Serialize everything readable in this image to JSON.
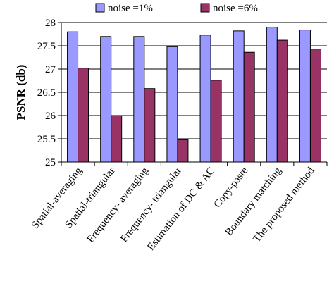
{
  "chart_data": {
    "type": "bar",
    "title": "",
    "xlabel": "",
    "ylabel": "PSNR (db)",
    "ylim": [
      25,
      28
    ],
    "yticks": [
      "25",
      "25.5",
      "26",
      "26.5",
      "27",
      "27.5",
      "28"
    ],
    "grid": "horizontal",
    "legend_position": "top",
    "categories": [
      "Spatial-averaging",
      "Spatial-triangular",
      "Frequency- averaging",
      "Frequency- triangular",
      "Estimation of DC & AC",
      "Copy-paste",
      "Boundary matching",
      "The proposed method"
    ],
    "series": [
      {
        "name": "noise =1%",
        "color": "#9999ff",
        "values": [
          27.8,
          27.7,
          27.7,
          27.48,
          27.73,
          27.82,
          27.9,
          27.84
        ]
      },
      {
        "name": "noise =6%",
        "color": "#993366",
        "values": [
          27.02,
          26.0,
          26.58,
          25.48,
          26.76,
          27.36,
          27.62,
          27.43
        ]
      }
    ]
  }
}
